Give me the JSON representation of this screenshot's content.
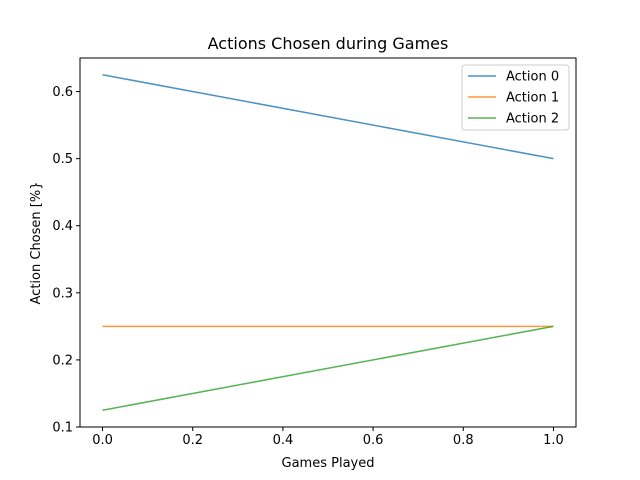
{
  "chart_data": {
    "type": "line",
    "title": "Actions Chosen during Games",
    "xlabel": "Games Played",
    "ylabel": "Action Chosen [%}",
    "x": [
      0.0,
      1.0
    ],
    "series": [
      {
        "name": "Action 0",
        "color": "#1f77b4",
        "values": [
          0.625,
          0.5
        ]
      },
      {
        "name": "Action 1",
        "color": "#ff7f0e",
        "values": [
          0.25,
          0.25
        ]
      },
      {
        "name": "Action 2",
        "color": "#2ca02c",
        "values": [
          0.125,
          0.25
        ]
      }
    ],
    "xlim": [
      -0.05,
      1.05
    ],
    "ylim": [
      0.1,
      0.65
    ],
    "xticks": [
      0.0,
      0.2,
      0.4,
      0.6,
      0.8,
      1.0
    ],
    "xtick_labels": [
      "0.0",
      "0.2",
      "0.4",
      "0.6",
      "0.8",
      "1.0"
    ],
    "yticks": [
      0.1,
      0.2,
      0.3,
      0.4,
      0.5,
      0.6
    ],
    "ytick_labels": [
      "0.1",
      "0.2",
      "0.3",
      "0.4",
      "0.5",
      "0.6"
    ],
    "grid": false,
    "legend_position": "top-right"
  }
}
